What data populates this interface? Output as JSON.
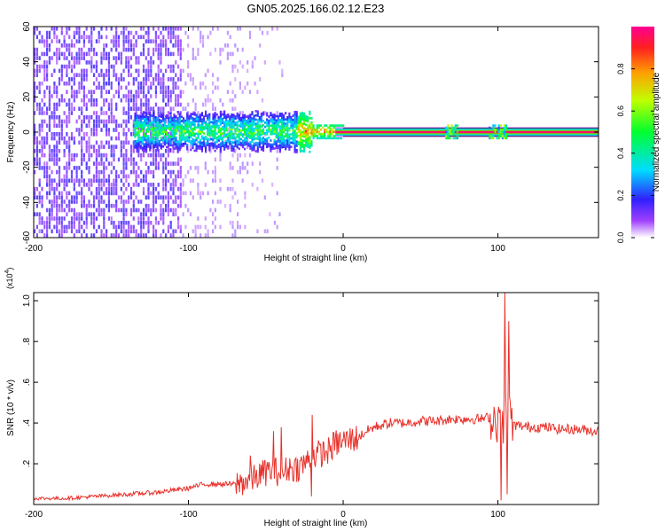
{
  "chart_data": [
    {
      "type": "heatmap",
      "title": "GN05.2025.166.02.12.E23",
      "xlabel": "Height of straight line (km)",
      "ylabel": "Frequency (Hz)",
      "xlim": [
        -200,
        165
      ],
      "ylim": [
        -60,
        60
      ],
      "x_ticks": [
        -200,
        -100,
        0,
        100
      ],
      "y_ticks": [
        -60,
        -40,
        -20,
        0,
        20,
        40,
        60
      ],
      "colorbar": {
        "label": "Normalized spectral amplitude",
        "range": [
          0,
          1
        ],
        "ticks": [
          0.0,
          0.2,
          0.4,
          0.6,
          0.8
        ],
        "colormap": [
          "#ffffff",
          "#8000ff",
          "#0000ff",
          "#00ffff",
          "#00ff00",
          "#ffff00",
          "#ff0000",
          "#ff00ff"
        ]
      },
      "features": [
        {
          "description_range_km": [
            -200,
            -105
          ],
          "frequency_range_hz": [
            -60,
            60
          ],
          "amplitude": 0.1
        },
        {
          "description_range_km": [
            -130,
            -30
          ],
          "frequency_range_hz": [
            -10,
            10
          ],
          "amplitude": 0.4
        },
        {
          "description_range_km": [
            0,
            165
          ],
          "frequency_range_hz": [
            -1,
            1
          ],
          "amplitude": 1.0
        },
        {
          "description_range_km": [
            95,
            105
          ],
          "frequency_range_hz": [
            -4,
            4
          ],
          "amplitude": 0.5
        }
      ]
    },
    {
      "type": "line",
      "xlabel": "Height of straight line (km)",
      "ylabel": "SNR (10 * v/v)",
      "y_multiplier": "(x10",
      "y_multiplier_exp": "4",
      "xlim": [
        -200,
        165
      ],
      "ylim": [
        0,
        1.04
      ],
      "x_ticks": [
        -200,
        -100,
        0,
        100
      ],
      "y_ticks": [
        0.2,
        0.4,
        0.6,
        0.8,
        1.0
      ],
      "series_color": "#e8302a",
      "x": [
        -200,
        -180,
        -160,
        -140,
        -120,
        -100,
        -90,
        -80,
        -70,
        -60,
        -50,
        -45,
        -40,
        -35,
        -30,
        -25,
        -20,
        -15,
        -10,
        -5,
        0,
        5,
        10,
        15,
        20,
        30,
        40,
        50,
        60,
        70,
        80,
        90,
        95,
        100,
        103,
        106,
        110,
        120,
        130,
        140,
        150,
        165
      ],
      "values": [
        0.03,
        0.03,
        0.04,
        0.05,
        0.06,
        0.08,
        0.1,
        0.1,
        0.1,
        0.12,
        0.16,
        0.17,
        0.15,
        0.18,
        0.18,
        0.2,
        0.24,
        0.25,
        0.26,
        0.3,
        0.31,
        0.32,
        0.33,
        0.36,
        0.38,
        0.4,
        0.4,
        0.41,
        0.41,
        0.42,
        0.42,
        0.42,
        0.43,
        0.42,
        0.5,
        0.45,
        0.39,
        0.38,
        0.38,
        0.37,
        0.37,
        0.36
      ],
      "spikes": [
        {
          "x": -60,
          "y": 0.24
        },
        {
          "x": -45,
          "y": 0.36
        },
        {
          "x": -40,
          "y": 0.38
        },
        {
          "x": -20,
          "y": 0.44
        },
        {
          "x": -20.5,
          "y": 0.04
        },
        {
          "x": 102,
          "y": 0.02
        },
        {
          "x": 103.5,
          "y": 0.3
        },
        {
          "x": 104.5,
          "y": 1.04
        },
        {
          "x": 106,
          "y": 0.05
        },
        {
          "x": 107,
          "y": 0.9
        }
      ]
    }
  ]
}
